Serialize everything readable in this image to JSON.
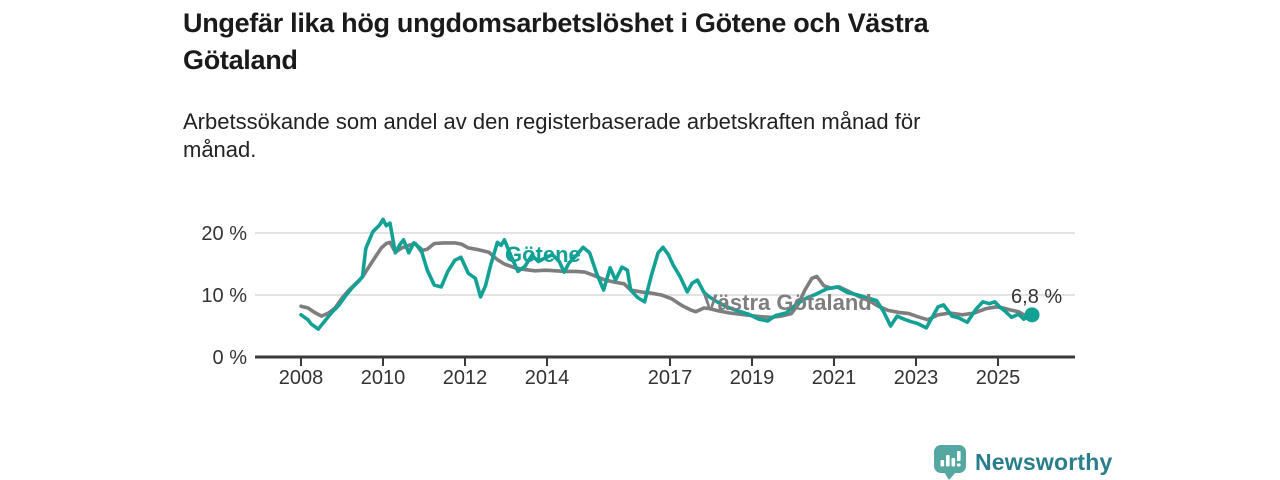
{
  "header": {
    "title_line1": "Ungefär lika hög ungdomsarbetslöshet i Götene och Västra",
    "title_line2": "Götaland",
    "subtitle_line1": "Arbetssökande som andel av den registerbaserade arbetskraften månad för",
    "subtitle_line2": "månad."
  },
  "chart_data": {
    "type": "line",
    "title": "Ungefär lika hög ungdomsarbetslöshet i Götene och Västra Götaland",
    "subtitle": "Arbetssökande som andel av den registerbaserade arbetskraften månad för månad.",
    "unit": "%",
    "xlim": [
      2007.9,
      2026.3
    ],
    "ylim": [
      0,
      23
    ],
    "grid": "horizontal",
    "legend_position": "inline-labels",
    "x_ticks": [
      2008,
      2010,
      2012,
      2014,
      2017,
      2019,
      2021,
      2023,
      2025
    ],
    "y_ticks": [
      {
        "value": 0,
        "label": "0 %"
      },
      {
        "value": 10,
        "label": "10 %"
      },
      {
        "value": 20,
        "label": "20 %"
      }
    ],
    "axis_color": "#3a3a3a",
    "grid_color": "#dadada",
    "tick_label_color": "#333333",
    "series": [
      {
        "name": "Västra Götaland",
        "color": "#7e7e7e",
        "points": [
          [
            2008.0,
            8.2
          ],
          [
            2008.17,
            7.9
          ],
          [
            2008.33,
            7.2
          ],
          [
            2008.5,
            6.6
          ],
          [
            2008.67,
            7.1
          ],
          [
            2008.83,
            7.9
          ],
          [
            2009.0,
            9.5
          ],
          [
            2009.17,
            10.8
          ],
          [
            2009.33,
            11.8
          ],
          [
            2009.5,
            12.9
          ],
          [
            2009.67,
            14.7
          ],
          [
            2009.83,
            16.3
          ],
          [
            2009.96,
            17.6
          ],
          [
            2010.08,
            18.3
          ],
          [
            2010.17,
            18.5
          ],
          [
            2010.3,
            16.9
          ],
          [
            2010.46,
            17.6
          ],
          [
            2010.63,
            18.0
          ],
          [
            2010.79,
            18.3
          ],
          [
            2010.92,
            17.1
          ],
          [
            2011.08,
            17.4
          ],
          [
            2011.25,
            18.3
          ],
          [
            2011.5,
            18.4
          ],
          [
            2011.75,
            18.4
          ],
          [
            2011.92,
            18.2
          ],
          [
            2012.08,
            17.6
          ],
          [
            2012.33,
            17.3
          ],
          [
            2012.58,
            16.9
          ],
          [
            2012.79,
            15.7
          ],
          [
            2012.96,
            15.0
          ],
          [
            2013.21,
            14.4
          ],
          [
            2013.46,
            14.1
          ],
          [
            2013.71,
            13.9
          ],
          [
            2013.96,
            14.0
          ],
          [
            2014.21,
            13.9
          ],
          [
            2014.46,
            13.8
          ],
          [
            2014.71,
            13.8
          ],
          [
            2014.92,
            13.7
          ],
          [
            2015.13,
            13.2
          ],
          [
            2015.38,
            12.5
          ],
          [
            2015.63,
            12.1
          ],
          [
            2015.88,
            11.8
          ],
          [
            2016.04,
            10.8
          ],
          [
            2016.29,
            10.5
          ],
          [
            2016.54,
            10.3
          ],
          [
            2016.79,
            10.0
          ],
          [
            2017.04,
            9.4
          ],
          [
            2017.29,
            8.3
          ],
          [
            2017.5,
            7.6
          ],
          [
            2017.63,
            7.3
          ],
          [
            2017.83,
            7.9
          ],
          [
            2017.96,
            7.8
          ],
          [
            2018.21,
            7.4
          ],
          [
            2018.46,
            7.1
          ],
          [
            2018.71,
            6.9
          ],
          [
            2018.96,
            6.7
          ],
          [
            2019.21,
            6.5
          ],
          [
            2019.46,
            6.4
          ],
          [
            2019.71,
            6.6
          ],
          [
            2019.96,
            7.0
          ],
          [
            2020.13,
            8.5
          ],
          [
            2020.29,
            10.8
          ],
          [
            2020.46,
            12.7
          ],
          [
            2020.58,
            13.0
          ],
          [
            2020.75,
            11.5
          ],
          [
            2020.92,
            11.1
          ],
          [
            2021.13,
            11.3
          ],
          [
            2021.38,
            10.5
          ],
          [
            2021.63,
            9.7
          ],
          [
            2021.88,
            9.0
          ],
          [
            2022.08,
            8.2
          ],
          [
            2022.33,
            7.5
          ],
          [
            2022.58,
            7.2
          ],
          [
            2022.83,
            7.0
          ],
          [
            2023.04,
            6.5
          ],
          [
            2023.29,
            6.0
          ],
          [
            2023.54,
            6.8
          ],
          [
            2023.83,
            7.1
          ],
          [
            2024.13,
            6.8
          ],
          [
            2024.42,
            7.1
          ],
          [
            2024.71,
            7.8
          ],
          [
            2024.96,
            8.1
          ],
          [
            2025.13,
            7.9
          ],
          [
            2025.29,
            7.6
          ],
          [
            2025.5,
            7.3
          ],
          [
            2025.71,
            6.5
          ]
        ]
      },
      {
        "name": "Götene",
        "color": "#12a194",
        "end_dot": true,
        "end_label": "6,8 %",
        "points": [
          [
            2008.0,
            6.8
          ],
          [
            2008.17,
            6.0
          ],
          [
            2008.25,
            5.3
          ],
          [
            2008.42,
            4.5
          ],
          [
            2008.58,
            5.8
          ],
          [
            2008.75,
            7.2
          ],
          [
            2008.92,
            8.3
          ],
          [
            2009.08,
            9.8
          ],
          [
            2009.25,
            11.2
          ],
          [
            2009.42,
            12.3
          ],
          [
            2009.5,
            13.0
          ],
          [
            2009.58,
            17.5
          ],
          [
            2009.75,
            20.2
          ],
          [
            2009.92,
            21.3
          ],
          [
            2010.0,
            22.2
          ],
          [
            2010.08,
            21.2
          ],
          [
            2010.17,
            21.6
          ],
          [
            2010.3,
            16.8
          ],
          [
            2010.42,
            18.2
          ],
          [
            2010.5,
            18.9
          ],
          [
            2010.63,
            16.8
          ],
          [
            2010.75,
            18.4
          ],
          [
            2010.92,
            17.5
          ],
          [
            2011.08,
            14.0
          ],
          [
            2011.25,
            11.6
          ],
          [
            2011.42,
            11.3
          ],
          [
            2011.58,
            13.8
          ],
          [
            2011.75,
            15.6
          ],
          [
            2011.9,
            16.1
          ],
          [
            2012.08,
            13.5
          ],
          [
            2012.25,
            12.7
          ],
          [
            2012.38,
            9.7
          ],
          [
            2012.5,
            11.5
          ],
          [
            2012.63,
            14.9
          ],
          [
            2012.79,
            18.5
          ],
          [
            2012.88,
            18.0
          ],
          [
            2012.96,
            18.9
          ],
          [
            2013.13,
            16.2
          ],
          [
            2013.29,
            13.8
          ],
          [
            2013.46,
            14.6
          ],
          [
            2013.63,
            16.4
          ],
          [
            2013.79,
            15.4
          ],
          [
            2013.96,
            16.0
          ],
          [
            2014.13,
            16.5
          ],
          [
            2014.29,
            15.5
          ],
          [
            2014.42,
            13.7
          ],
          [
            2014.54,
            15.2
          ],
          [
            2014.71,
            16.3
          ],
          [
            2014.88,
            17.7
          ],
          [
            2015.04,
            16.8
          ],
          [
            2015.21,
            13.5
          ],
          [
            2015.38,
            10.8
          ],
          [
            2015.54,
            14.4
          ],
          [
            2015.67,
            12.4
          ],
          [
            2015.83,
            14.5
          ],
          [
            2015.96,
            14.0
          ],
          [
            2016.04,
            10.8
          ],
          [
            2016.21,
            9.6
          ],
          [
            2016.38,
            8.9
          ],
          [
            2016.54,
            13.0
          ],
          [
            2016.71,
            16.8
          ],
          [
            2016.83,
            17.7
          ],
          [
            2016.96,
            16.5
          ],
          [
            2017.08,
            14.8
          ],
          [
            2017.25,
            12.9
          ],
          [
            2017.42,
            10.5
          ],
          [
            2017.54,
            11.9
          ],
          [
            2017.67,
            12.4
          ],
          [
            2017.83,
            10.4
          ],
          [
            2017.96,
            9.7
          ],
          [
            2018.17,
            8.8
          ],
          [
            2018.42,
            8.0
          ],
          [
            2018.67,
            7.4
          ],
          [
            2018.92,
            6.9
          ],
          [
            2019.17,
            6.1
          ],
          [
            2019.38,
            5.8
          ],
          [
            2019.58,
            6.7
          ],
          [
            2019.83,
            7.1
          ],
          [
            2020.08,
            8.5
          ],
          [
            2020.33,
            9.5
          ],
          [
            2020.58,
            10.2
          ],
          [
            2020.83,
            11.0
          ],
          [
            2021.08,
            11.3
          ],
          [
            2021.33,
            10.4
          ],
          [
            2021.58,
            10.0
          ],
          [
            2021.83,
            9.5
          ],
          [
            2022.04,
            9.1
          ],
          [
            2022.21,
            7.3
          ],
          [
            2022.38,
            5.0
          ],
          [
            2022.54,
            6.6
          ],
          [
            2022.71,
            6.1
          ],
          [
            2022.88,
            5.7
          ],
          [
            2023.04,
            5.4
          ],
          [
            2023.25,
            4.7
          ],
          [
            2023.54,
            8.1
          ],
          [
            2023.67,
            8.4
          ],
          [
            2023.88,
            6.6
          ],
          [
            2024.04,
            6.3
          ],
          [
            2024.25,
            5.6
          ],
          [
            2024.46,
            7.7
          ],
          [
            2024.63,
            8.9
          ],
          [
            2024.79,
            8.6
          ],
          [
            2024.92,
            8.9
          ],
          [
            2025.04,
            8.1
          ],
          [
            2025.17,
            7.4
          ],
          [
            2025.33,
            6.4
          ],
          [
            2025.5,
            6.9
          ],
          [
            2025.63,
            6.1
          ],
          [
            2025.83,
            6.8
          ]
        ]
      }
    ]
  },
  "footer": {
    "brand": "Newsworthy",
    "brand_color": "#2a7e8c",
    "icon_color": "#55a8a1",
    "icon": "bar-chart-speech-bubble"
  }
}
